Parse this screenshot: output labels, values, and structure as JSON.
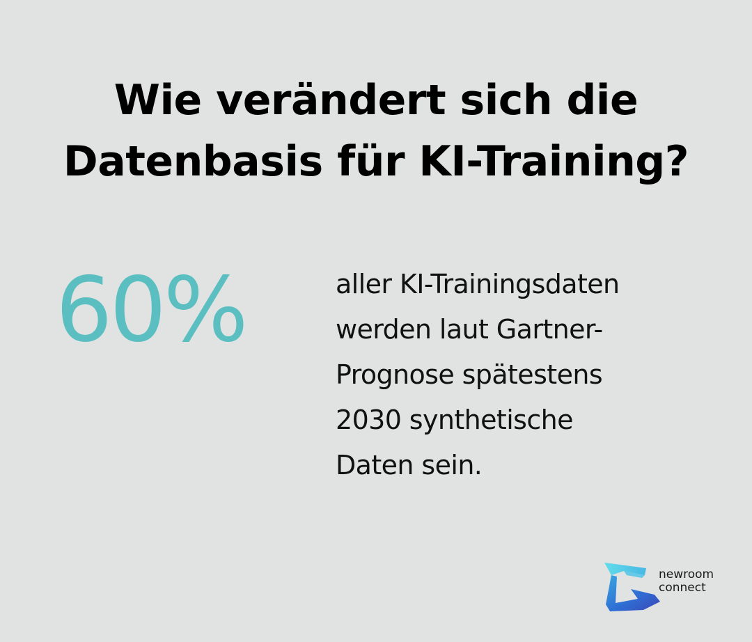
{
  "title": {
    "line1": "Wie verändert sich die",
    "line2": "Datenbasis für KI-Training?"
  },
  "stat": {
    "value": "60%",
    "color": "#5bbfc1"
  },
  "description": {
    "line1": "aller KI-Trainingsdaten",
    "line2": "werden laut Gartner-",
    "line3": "Prognose spätestens",
    "line4": "2030 synthetische",
    "line5": "Daten sein."
  },
  "brand": {
    "icon": "newroom-connect-logo-icon",
    "line1": "newroom",
    "line2": "connect",
    "colors": [
      "#5fd6e6",
      "#2e6fd4",
      "#3a4fbf"
    ]
  },
  "background": "#e1e3e2"
}
